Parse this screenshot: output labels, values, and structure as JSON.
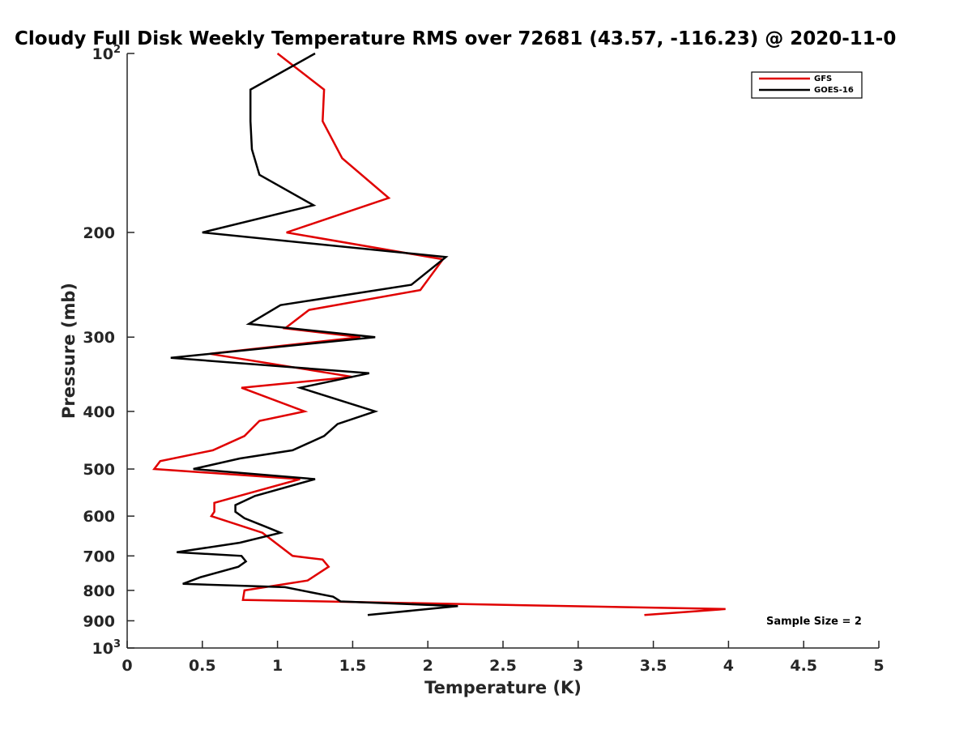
{
  "chart_data": {
    "type": "line",
    "title": "Cloudy Full Disk Weekly Temperature RMS over 72681 (43.57, -116.23) @ 2020-11-0",
    "xlabel": "Temperature (K)",
    "ylabel": "Pressure (mb)",
    "xlim": [
      0,
      5
    ],
    "ylim": [
      100,
      1000
    ],
    "y_scale": "log",
    "y_reversed": true,
    "grid": false,
    "legend_position": "top-right",
    "x_ticks": [
      {
        "value": 0,
        "label": "0"
      },
      {
        "value": 0.5,
        "label": "0.5"
      },
      {
        "value": 1,
        "label": "1"
      },
      {
        "value": 1.5,
        "label": "1.5"
      },
      {
        "value": 2,
        "label": "2"
      },
      {
        "value": 2.5,
        "label": "2.5"
      },
      {
        "value": 3,
        "label": "3"
      },
      {
        "value": 3.5,
        "label": "3.5"
      },
      {
        "value": 4,
        "label": "4"
      },
      {
        "value": 4.5,
        "label": "4.5"
      },
      {
        "value": 5,
        "label": "5"
      }
    ],
    "y_ticks": [
      {
        "value": 100,
        "base": "10",
        "exp": "2"
      },
      {
        "value": 200,
        "label": "200"
      },
      {
        "value": 300,
        "label": "300"
      },
      {
        "value": 400,
        "label": "400"
      },
      {
        "value": 500,
        "label": "500"
      },
      {
        "value": 600,
        "label": "600"
      },
      {
        "value": 700,
        "label": "700"
      },
      {
        "value": 800,
        "label": "800"
      },
      {
        "value": 900,
        "label": "900"
      },
      {
        "value": 1000,
        "base": "10",
        "exp": "3"
      }
    ],
    "series": [
      {
        "name": "GFS",
        "color": "#e00000",
        "points": [
          [
            1.0,
            100
          ],
          [
            1.31,
            115
          ],
          [
            1.3,
            130
          ],
          [
            1.43,
            150
          ],
          [
            1.74,
            175
          ],
          [
            1.06,
            200
          ],
          [
            2.1,
            222
          ],
          [
            1.95,
            250
          ],
          [
            1.21,
            270
          ],
          [
            1.05,
            290
          ],
          [
            1.55,
            300
          ],
          [
            0.55,
            320
          ],
          [
            1.5,
            350
          ],
          [
            0.76,
            365
          ],
          [
            1.18,
            400
          ],
          [
            0.88,
            415
          ],
          [
            0.78,
            440
          ],
          [
            0.57,
            465
          ],
          [
            0.22,
            485
          ],
          [
            0.18,
            500
          ],
          [
            1.15,
            520
          ],
          [
            0.8,
            550
          ],
          [
            0.58,
            570
          ],
          [
            0.58,
            590
          ],
          [
            0.56,
            600
          ],
          [
            0.9,
            640
          ],
          [
            1.1,
            700
          ],
          [
            1.3,
            710
          ],
          [
            1.34,
            730
          ],
          [
            1.2,
            770
          ],
          [
            0.78,
            800
          ],
          [
            0.77,
            830
          ],
          [
            3.98,
            860
          ],
          [
            3.44,
            880
          ]
        ]
      },
      {
        "name": "GOES-16",
        "color": "#000000",
        "points": [
          [
            1.25,
            100
          ],
          [
            0.82,
            115
          ],
          [
            0.82,
            130
          ],
          [
            0.83,
            145
          ],
          [
            0.88,
            160
          ],
          [
            1.24,
            180
          ],
          [
            0.5,
            200
          ],
          [
            2.12,
            220
          ],
          [
            1.89,
            245
          ],
          [
            1.02,
            265
          ],
          [
            0.81,
            285
          ],
          [
            1.65,
            300
          ],
          [
            0.29,
            325
          ],
          [
            1.61,
            345
          ],
          [
            1.15,
            365
          ],
          [
            1.65,
            400
          ],
          [
            1.4,
            420
          ],
          [
            1.31,
            440
          ],
          [
            1.1,
            465
          ],
          [
            0.75,
            480
          ],
          [
            0.44,
            500
          ],
          [
            1.25,
            520
          ],
          [
            0.85,
            555
          ],
          [
            0.72,
            575
          ],
          [
            0.72,
            590
          ],
          [
            0.78,
            605
          ],
          [
            0.92,
            625
          ],
          [
            1.02,
            640
          ],
          [
            0.75,
            665
          ],
          [
            0.33,
            690
          ],
          [
            0.76,
            700
          ],
          [
            0.79,
            715
          ],
          [
            0.74,
            730
          ],
          [
            0.49,
            760
          ],
          [
            0.37,
            780
          ],
          [
            1.05,
            790
          ],
          [
            1.37,
            820
          ],
          [
            1.42,
            835
          ],
          [
            2.2,
            850
          ],
          [
            1.6,
            880
          ]
        ]
      }
    ],
    "annotations": [
      "Sample Size = 2"
    ]
  }
}
